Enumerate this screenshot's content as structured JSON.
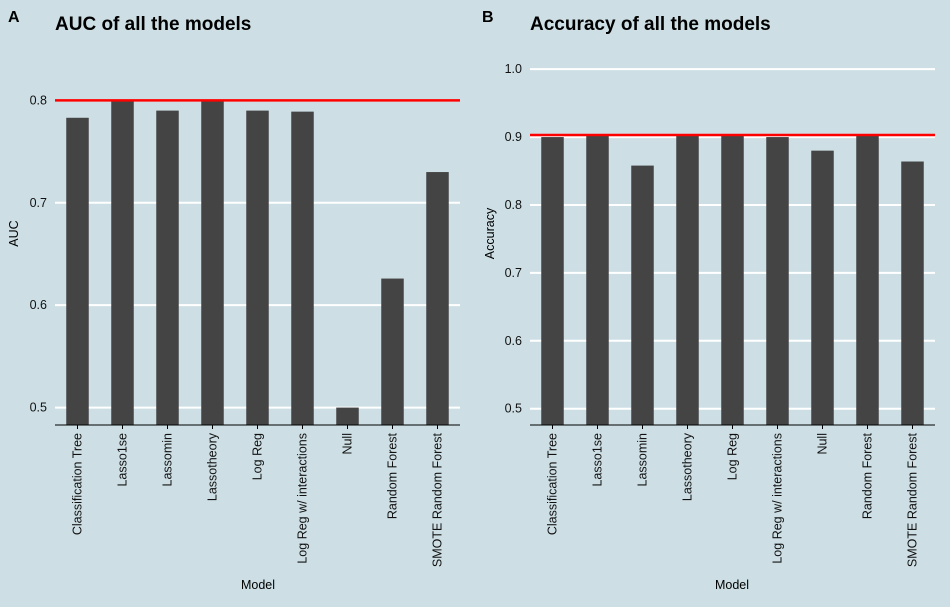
{
  "chart_data": [
    {
      "panel_label": "A",
      "type": "bar",
      "title": "AUC of all the models",
      "xlabel": "Model",
      "ylabel": "AUC",
      "categories": [
        "Classification Tree",
        "Lasso1se",
        "Lassomin",
        "Lassotheory",
        "Log Reg",
        "Log Reg w/ interactions",
        "Null",
        "Random Forest",
        "SMOTE Random Forest"
      ],
      "values": [
        0.783,
        0.8,
        0.79,
        0.8,
        0.79,
        0.789,
        0.5,
        0.626,
        0.73
      ],
      "yticks": [
        0.5,
        0.6,
        0.7,
        0.8
      ],
      "ytick_labels": [
        "0.5",
        "0.6",
        "0.7",
        "0.8"
      ],
      "ylim": [
        0.483,
        0.857
      ],
      "reference_line": 0.8,
      "reference_color": "#ff0000",
      "bar_color": "#444444",
      "grid": true
    },
    {
      "panel_label": "B",
      "type": "bar",
      "title": "Accuracy of all the models",
      "xlabel": "Model",
      "ylabel": "Accuracy",
      "categories": [
        "Classification Tree",
        "Lasso1se",
        "Lassomin",
        "Lassotheory",
        "Log Reg",
        "Log Reg w/ interactions",
        "Null",
        "Random Forest",
        "SMOTE Random Forest"
      ],
      "values": [
        0.9,
        0.903,
        0.858,
        0.903,
        0.903,
        0.9,
        0.88,
        0.903,
        0.864
      ],
      "yticks": [
        0.5,
        0.6,
        0.7,
        0.8,
        0.9,
        1.0
      ],
      "ytick_labels": [
        "0.5",
        "0.6",
        "0.7",
        "0.8",
        "0.9",
        "1.0"
      ],
      "ylim": [
        0.476,
        1.04
      ],
      "reference_line": 0.903,
      "reference_color": "#ff0000",
      "bar_color": "#444444",
      "grid": true
    }
  ]
}
